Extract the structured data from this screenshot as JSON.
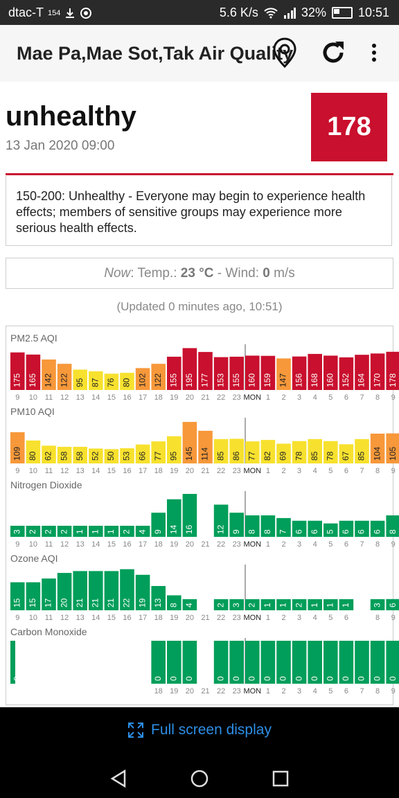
{
  "status_bar": {
    "carrier": "dtac-T",
    "carrier_badge": "154",
    "network_speed": "5.6 K/s",
    "battery": "32%",
    "time": "10:51"
  },
  "app_bar": {
    "title": "Mae Pa,Mae Sot,Tak Air Quality",
    "location_icon": "location-pin-icon",
    "refresh_icon": "refresh-icon",
    "menu_icon": "more-vert-icon"
  },
  "summary": {
    "level": "unhealthy",
    "datetime": "13 Jan 2020 09:00",
    "aqi": "178",
    "aqi_color": "#c9102e",
    "description": "150-200: Unhealthy - Everyone may begin to experience health effects; members of sensitive groups may experience more serious health effects."
  },
  "weather": {
    "now_label": "Now",
    "temp_label": ": Temp.: ",
    "temp_value": "23 °C",
    "wind_label": " - Wind: ",
    "wind_value": "0",
    "wind_unit": " m/s"
  },
  "updated_text": "(Updated 0 minutes ago, 10:51)",
  "colors": {
    "unhealthy": "#c9102e",
    "sensitive": "#f7983a",
    "moderate": "#f7e12e",
    "good": "#009e5a"
  },
  "chart_data": [
    {
      "type": "bar",
      "title": "PM2.5 AQI",
      "categories": [
        "9",
        "10",
        "11",
        "12",
        "13",
        "14",
        "15",
        "16",
        "17",
        "18",
        "19",
        "20",
        "21",
        "22",
        "23",
        "MON",
        "1",
        "2",
        "3",
        "4",
        "5",
        "6",
        "7",
        "8",
        "9"
      ],
      "values": [
        175,
        165,
        142,
        122,
        95,
        87,
        76,
        80,
        102,
        122,
        155,
        195,
        177,
        153,
        155,
        160,
        159,
        147,
        156,
        168,
        160,
        152,
        164,
        170,
        178
      ],
      "first_label": "175"
    },
    {
      "type": "bar",
      "title": "PM10 AQI",
      "categories": [
        "9",
        "10",
        "11",
        "12",
        "13",
        "14",
        "15",
        "16",
        "17",
        "18",
        "19",
        "20",
        "21",
        "22",
        "23",
        "MON",
        "1",
        "2",
        "3",
        "4",
        "5",
        "6",
        "7",
        "8",
        "9"
      ],
      "values": [
        109,
        80,
        62,
        58,
        58,
        52,
        50,
        53,
        66,
        77,
        95,
        145,
        114,
        85,
        86,
        77,
        82,
        69,
        78,
        85,
        78,
        67,
        85,
        104,
        105
      ],
      "first_label": "109"
    },
    {
      "type": "bar",
      "title": "Nitrogen Dioxide",
      "categories": [
        "9",
        "10",
        "11",
        "12",
        "13",
        "14",
        "15",
        "16",
        "17",
        "18",
        "19",
        "20",
        "21",
        "22",
        "23",
        "MON",
        "1",
        "2",
        "3",
        "4",
        "5",
        "6",
        "7",
        "8",
        "9"
      ],
      "values": [
        3,
        2,
        2,
        2,
        1,
        1,
        1,
        2,
        4,
        9,
        14,
        16,
        null,
        12,
        9,
        8,
        8,
        7,
        6,
        6,
        5,
        6,
        6,
        6,
        8
      ],
      "first_label": "3"
    },
    {
      "type": "bar",
      "title": "Ozone AQI",
      "categories": [
        "9",
        "10",
        "11",
        "12",
        "13",
        "14",
        "15",
        "16",
        "17",
        "18",
        "19",
        "20",
        "21",
        "22",
        "23",
        "MON",
        "1",
        "2",
        "3",
        "4",
        "5",
        "6",
        "7",
        "8",
        "9"
      ],
      "values": [
        15,
        15,
        17,
        20,
        21,
        21,
        21,
        22,
        19,
        13,
        8,
        4,
        null,
        2,
        3,
        2,
        1,
        1,
        2,
        1,
        1,
        1,
        null,
        3,
        6
      ],
      "first_label": "15"
    },
    {
      "type": "bar",
      "title": "Carbon Monoxide",
      "categories": [
        "9",
        "10",
        "11",
        "12",
        "13",
        "14",
        "15",
        "16",
        "17",
        "18",
        "19",
        "20",
        "21",
        "22",
        "23",
        "MON",
        "1",
        "2",
        "3",
        "4",
        "5",
        "6",
        "7",
        "8",
        "9"
      ],
      "values": [
        0,
        null,
        null,
        null,
        null,
        null,
        null,
        null,
        null,
        0,
        0,
        0,
        null,
        0,
        0,
        0,
        0,
        0,
        0,
        0,
        0,
        0,
        0,
        0,
        0
      ],
      "first_label": "0"
    }
  ],
  "fullscreen_label": "Full screen display",
  "nav": {
    "back_icon": "back-triangle-icon",
    "home_icon": "home-circle-icon",
    "recents_icon": "recents-square-icon"
  }
}
